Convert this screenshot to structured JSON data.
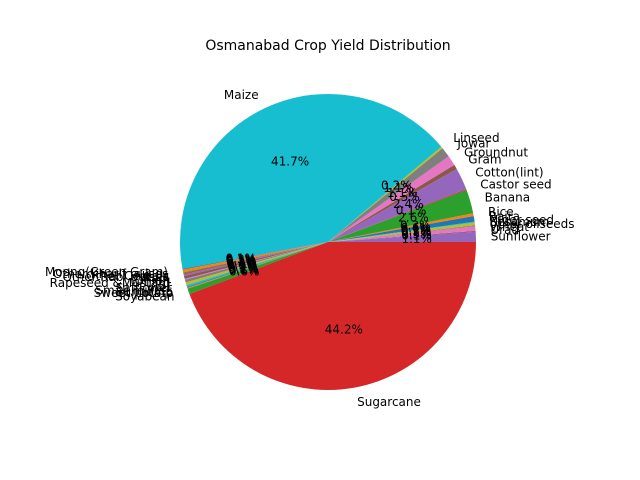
{
  "chart_data": {
    "type": "pie",
    "title": "Osmanabad Crop Yield Distribution",
    "start_angle_deg": 0,
    "counterclockwise": true,
    "slices": [
      {
        "label": "Sunflower",
        "value": 1.1,
        "pct_label": "1.1%",
        "color": "#9467bd"
      },
      {
        "label": "Urad",
        "value": 0.1,
        "pct_label": "0.1%",
        "color": "#8c564b"
      },
      {
        "label": "Wheat",
        "value": 0.5,
        "pct_label": "0.5%",
        "color": "#e377c2"
      },
      {
        "label": "other oilseeds",
        "value": 0.1,
        "pct_label": "0.1%",
        "color": "#7f7f7f"
      },
      {
        "label": "Sesamum",
        "value": 0.3,
        "pct_label": "0.3%",
        "color": "#bcbd22"
      },
      {
        "label": "Niger seed",
        "value": 0.1,
        "pct_label": "0.1%",
        "color": "#17becf"
      },
      {
        "label": "Bajra",
        "value": 0.6,
        "pct_label": "0.6%",
        "color": "#1f77b4"
      },
      {
        "label": "Rice",
        "value": 0.3,
        "pct_label": "0.3%",
        "color": "#ff7f0e"
      },
      {
        "label": "Banana",
        "value": 2.6,
        "pct_label": "2.6%",
        "color": "#2ca02c"
      },
      {
        "label": "Castor seed",
        "value": 0.1,
        "pct_label": "0.1%",
        "color": "#d62728"
      },
      {
        "label": "Cotton(lint)",
        "value": 2.4,
        "pct_label": "2.4%",
        "color": "#9467bd"
      },
      {
        "label": "Gram",
        "value": 0.5,
        "pct_label": "0.5%",
        "color": "#8c564b"
      },
      {
        "label": "Groundnut",
        "value": 1.1,
        "pct_label": "1.1%",
        "color": "#e377c2"
      },
      {
        "label": "Jowar",
        "value": 1.1,
        "pct_label": "1.1%",
        "color": "#7f7f7f"
      },
      {
        "label": "Linseed",
        "value": 0.2,
        "pct_label": "0.2%",
        "color": "#bcbd22"
      },
      {
        "label": "Maize",
        "value": 41.7,
        "pct_label": "41.7%",
        "color": "#17becf"
      },
      {
        "label": "Moong(Green Gram)",
        "value": 0.1,
        "pct_label": "0.1%",
        "color": "#1f77b4"
      },
      {
        "label": "Other Kharif pulses",
        "value": 0.3,
        "pct_label": "0.3%",
        "color": "#ff7f0e"
      },
      {
        "label": "Other Cereals",
        "value": 0.1,
        "pct_label": "0.1%",
        "color": "#2ca02c"
      },
      {
        "label": "Other Rabi pulses",
        "value": 0.1,
        "pct_label": "0.1%",
        "color": "#d62728"
      },
      {
        "label": "Ragi",
        "value": 0.2,
        "pct_label": "0.2%",
        "color": "#9467bd"
      },
      {
        "label": "Onion",
        "value": 0.3,
        "pct_label": "0.3%",
        "color": "#8c564b"
      },
      {
        "label": "Rapeseed &Mustard",
        "value": 0.1,
        "pct_label": "0.1%",
        "color": "#e377c2"
      },
      {
        "label": "Tur",
        "value": 0.3,
        "pct_label": "0.3%",
        "color": "#7f7f7f"
      },
      {
        "label": "Safflower",
        "value": 0.3,
        "pct_label": "0.3%",
        "color": "#bcbd22"
      },
      {
        "label": "Small millets",
        "value": 0.2,
        "pct_label": "0.2%",
        "color": "#17becf"
      },
      {
        "label": "Sunhemp",
        "value": 0.1,
        "pct_label": "0.1%",
        "color": "#1f77b4"
      },
      {
        "label": "Sweet potato",
        "value": 0.1,
        "pct_label": "0.1%",
        "color": "#ff7f0e"
      },
      {
        "label": "Soyabean",
        "value": 0.6,
        "pct_label": "0.6%",
        "color": "#2ca02c"
      },
      {
        "label": "Sugarcane",
        "value": 44.2,
        "pct_label": "44.2%",
        "color": "#d62728"
      }
    ]
  }
}
